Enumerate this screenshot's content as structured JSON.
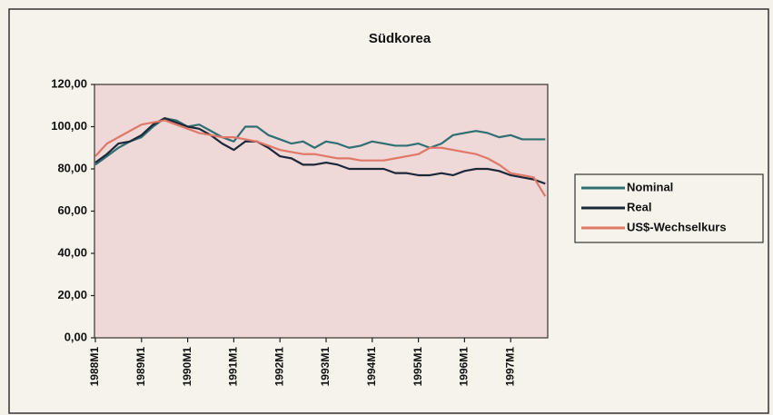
{
  "chart_data": {
    "type": "line",
    "title": "Südkorea",
    "categories": [
      "1988M1",
      null,
      null,
      null,
      "1989M1",
      null,
      null,
      null,
      "1990M1",
      null,
      null,
      null,
      "1991M1",
      null,
      null,
      null,
      "1992M1",
      null,
      null,
      null,
      "1993M1",
      null,
      null,
      null,
      "1994M1",
      null,
      null,
      null,
      "1995M1",
      null,
      null,
      null,
      "1996M1",
      null,
      null,
      null,
      "1997M1",
      null,
      null,
      null
    ],
    "series": [
      {
        "name": "Nominal",
        "color": "#2f6f72",
        "values": [
          82,
          86,
          90,
          93,
          95,
          100,
          104,
          103,
          100,
          101,
          98,
          95,
          93,
          100,
          100,
          96,
          94,
          92,
          93,
          90,
          93,
          92,
          90,
          91,
          93,
          92,
          91,
          91,
          92,
          90,
          92,
          96,
          97,
          98,
          97,
          95,
          96,
          94,
          94,
          94
        ]
      },
      {
        "name": "Real",
        "color": "#1c2838",
        "values": [
          83,
          87,
          92,
          93,
          96,
          101,
          104,
          102,
          100,
          99,
          96,
          92,
          89,
          93,
          93,
          90,
          86,
          85,
          82,
          82,
          83,
          82,
          80,
          80,
          80,
          80,
          78,
          78,
          77,
          77,
          78,
          77,
          79,
          80,
          80,
          79,
          77,
          76,
          75,
          73
        ]
      },
      {
        "name": "US$-Wechselkurs",
        "color": "#e07868",
        "values": [
          86,
          92,
          95,
          98,
          101,
          102,
          103,
          101,
          99,
          97,
          96,
          95,
          95,
          94,
          93,
          91,
          89,
          88,
          87,
          87,
          86,
          85,
          85,
          84,
          84,
          84,
          85,
          86,
          87,
          90,
          90,
          89,
          88,
          87,
          85,
          82,
          78,
          77,
          76,
          67
        ]
      }
    ],
    "ylim": [
      0,
      120
    ],
    "yticks": [
      {
        "value": 0,
        "label": "0,00"
      },
      {
        "value": 20,
        "label": "20,00"
      },
      {
        "value": 40,
        "label": "40,00"
      },
      {
        "value": 60,
        "label": "60,00"
      },
      {
        "value": 80,
        "label": "80,00"
      },
      {
        "value": 100,
        "label": "100,00"
      },
      {
        "value": 120,
        "label": "120,00"
      }
    ],
    "legend": "right"
  }
}
